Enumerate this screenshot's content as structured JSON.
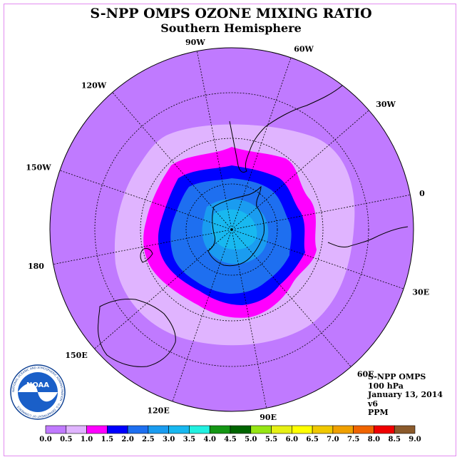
{
  "title": "S-NPP OMPS OZONE MIXING RATIO",
  "subtitle": "Southern Hemisphere",
  "logo": {
    "text": "NOAA",
    "ring_text": "NATIONAL OCEANIC AND ATMOSPHERIC ADMINISTRATION · U.S. DEPARTMENT OF COMMERCE"
  },
  "longitude_labels": [
    "90W",
    "60W",
    "30W",
    "0",
    "30E",
    "60E",
    "90E",
    "120E",
    "150E",
    "180",
    "150W",
    "120W"
  ],
  "info": {
    "product": "S-NPP OMPS",
    "level": "100 hPa",
    "date": "January 13, 2014",
    "version": "v6",
    "units": "PPM"
  },
  "colorbar": {
    "colors": [
      "#c07aff",
      "#e0b4ff",
      "#ff00ff",
      "#0000ff",
      "#1e6ff0",
      "#1a9cf0",
      "#18b8f0",
      "#22f0e0",
      "#149614",
      "#006400",
      "#96e614",
      "#e6f014",
      "#ffff00",
      "#f0c800",
      "#f0a000",
      "#f06400",
      "#f00000",
      "#8b5a2b"
    ],
    "labels": [
      "0.0",
      "0.5",
      "1.0",
      "1.5",
      "2.0",
      "2.5",
      "3.0",
      "3.5",
      "4.0",
      "4.5",
      "5.0",
      "5.5",
      "6.0",
      "6.5",
      "7.0",
      "7.5",
      "8.0",
      "8.5",
      "9.0"
    ]
  },
  "map_colors": {
    "background": "#c07aff",
    "band_0_5": "#e0b4ff",
    "band_1_0": "#ff00ff",
    "band_1_5": "#0000ff",
    "band_2_0": "#1e6ff0",
    "band_2_5": "#1a9cf0",
    "band_3_0": "#18b8f0"
  }
}
